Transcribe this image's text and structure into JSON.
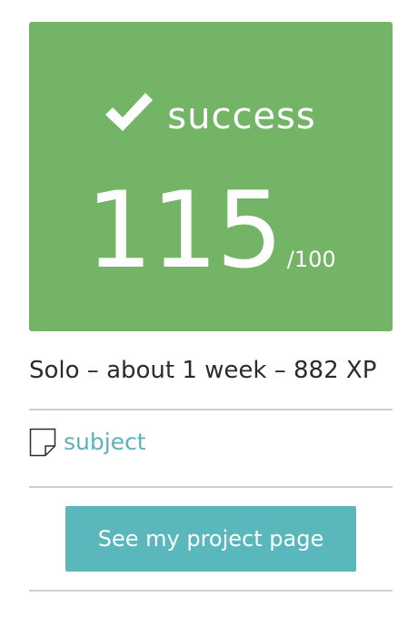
{
  "result": {
    "status_icon": "check-icon",
    "status_label": "success",
    "score": "115",
    "score_max": "/100",
    "card_color": "#74b466"
  },
  "project": {
    "meta": "Solo – about 1 week – 882 XP"
  },
  "links": {
    "subject_icon": "document-icon",
    "subject_label": "subject",
    "link_color": "#5ab3ba"
  },
  "actions": {
    "project_page_label": "See my project page",
    "button_color": "#5ab7bb"
  }
}
